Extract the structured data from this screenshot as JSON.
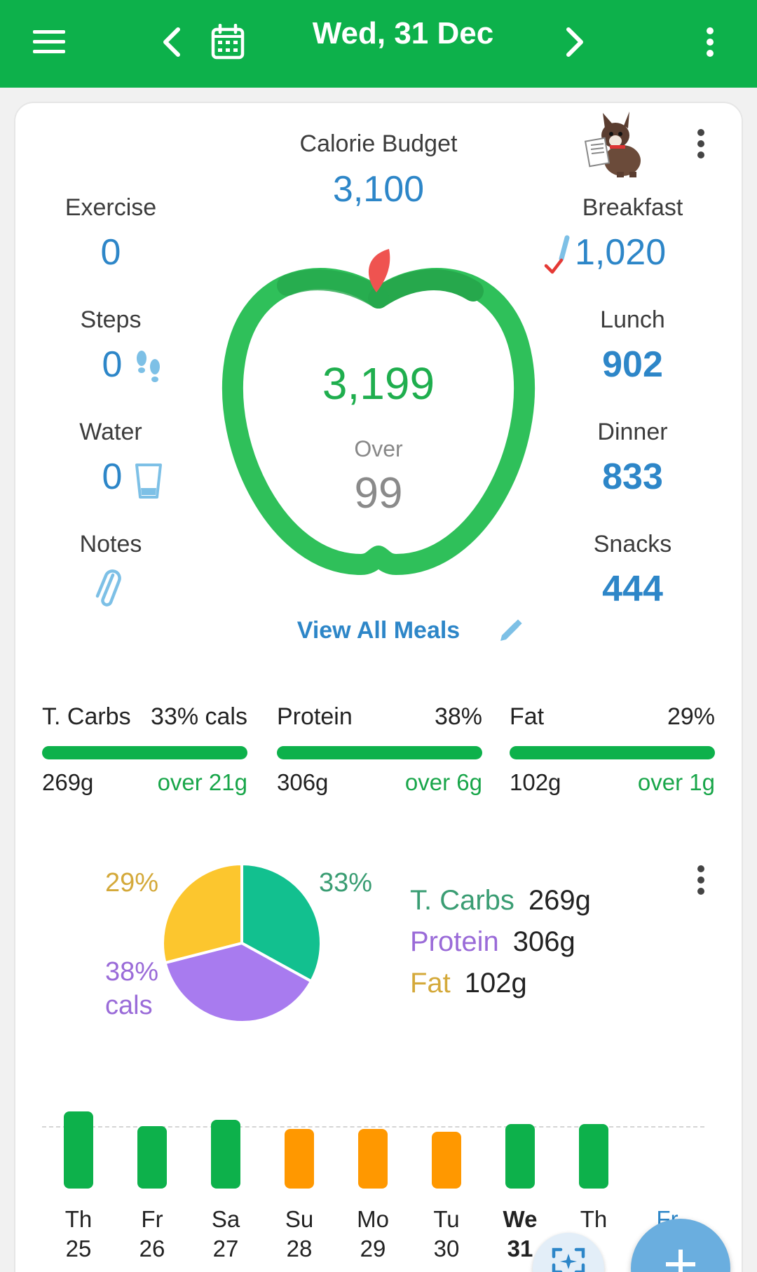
{
  "header": {
    "title": "Wed, 31 Dec",
    "menu_icon": "hamburger-menu-icon",
    "prev_icon": "chevron-left-icon",
    "calendar_icon": "calendar-icon",
    "next_icon": "chevron-right-icon",
    "more_icon": "more-vert-icon",
    "bg_color": "#0db14b"
  },
  "summary": {
    "budget_label": "Calorie Budget",
    "budget_value": "3,100",
    "exercise_label": "Exercise",
    "exercise_value": "0",
    "steps_label": "Steps",
    "steps_value": "0",
    "water_label": "Water",
    "water_value": "0",
    "notes_label": "Notes",
    "breakfast_label": "Breakfast",
    "breakfast_value": "1,020",
    "lunch_label": "Lunch",
    "lunch_value": "902",
    "dinner_label": "Dinner",
    "dinner_value": "833",
    "snacks_label": "Snacks",
    "snacks_value": "444",
    "eaten_value": "3,199",
    "over_label": "Over",
    "over_value": "99",
    "view_all_meals": "View All Meals"
  },
  "macros": [
    {
      "name": "T. Carbs",
      "pct": "33% cals",
      "grams": "269g",
      "status": "over 21g"
    },
    {
      "name": "Protein",
      "pct": "38%",
      "grams": "306g",
      "status": "over 6g"
    },
    {
      "name": "Fat",
      "pct": "29%",
      "grams": "102g",
      "status": "over 1g"
    }
  ],
  "pie": {
    "labels": {
      "carbs": "33%",
      "fat": "29%",
      "protein_pct": "38%",
      "protein_cals": "cals"
    },
    "legend": [
      {
        "name": "T. Carbs",
        "grams": "269g",
        "color": "#3a9d73"
      },
      {
        "name": "Protein",
        "grams": "306g",
        "color": "#9a6bd8"
      },
      {
        "name": "Fat",
        "grams": "102g",
        "color": "#d4a93a"
      }
    ]
  },
  "chart_data": {
    "type": "bar",
    "categories": [
      "Th 25",
      "Fr 26",
      "Sa 27",
      "Su 28",
      "Mo 29",
      "Tu 30",
      "We 31",
      "Th"
    ],
    "values": [
      1.24,
      1.0,
      1.1,
      0.96,
      0.96,
      0.91,
      1.03,
      1.03
    ],
    "bar_colors": [
      "#0db14b",
      "#0db14b",
      "#0db14b",
      "#ff9800",
      "#ff9800",
      "#ff9800",
      "#0db14b",
      "#0db14b"
    ],
    "grid": "dashed budget line"
  },
  "days": [
    {
      "dow": "Th",
      "date": "25"
    },
    {
      "dow": "Fr",
      "date": "26"
    },
    {
      "dow": "Sa",
      "date": "27"
    },
    {
      "dow": "Su",
      "date": "28"
    },
    {
      "dow": "Mo",
      "date": "29"
    },
    {
      "dow": "Tu",
      "date": "30"
    },
    {
      "dow": "We",
      "date": "31"
    },
    {
      "dow": "Th",
      "date": ""
    },
    {
      "dow": "Fr",
      "date": ""
    }
  ],
  "fab": {
    "scan_icon": "ai-scan-icon",
    "add_icon": "plus-icon"
  },
  "colors": {
    "accent": "#0db14b",
    "blue": "#2d86c8",
    "orange": "#ff9800",
    "over_green": "#19a64a"
  }
}
